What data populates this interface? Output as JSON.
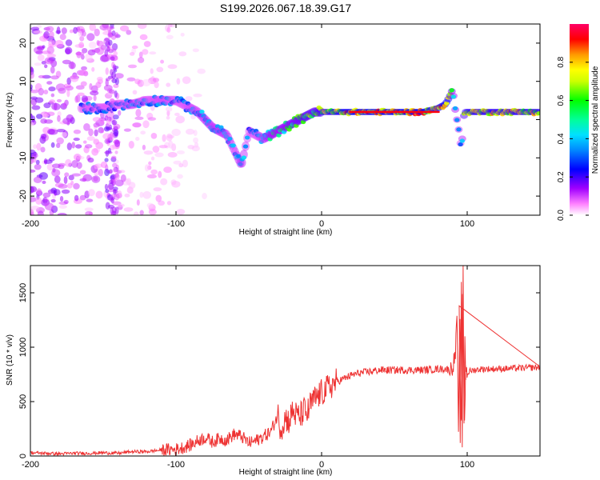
{
  "title": "S199.2026.067.18.39.G17",
  "chart_data": [
    {
      "type": "heatmap",
      "title": "S199.2026.067.18.39.G17",
      "xlabel": "Height of straight line (km)",
      "ylabel": "Frequency (Hz)",
      "xlim": [
        -200,
        150
      ],
      "ylim": [
        -25,
        25
      ],
      "xticks": [
        -200,
        -100,
        0,
        100
      ],
      "yticks": [
        -20,
        -10,
        0,
        10,
        20
      ],
      "colorbar": {
        "label": "Normalized spectral amplitude",
        "range": [
          0,
          1
        ],
        "ticks": [
          0.0,
          0.2,
          0.4,
          0.6,
          0.8
        ],
        "colors": [
          "#ffffff",
          "#ff66ff",
          "#9900ff",
          "#0000ff",
          "#00ccff",
          "#00ff99",
          "#00ff00",
          "#ccff00",
          "#ffff00",
          "#ff9900",
          "#ff0000",
          "#ff0066"
        ]
      },
      "ridge": {
        "x": [
          -160,
          -150,
          -140,
          -130,
          -120,
          -110,
          -100,
          -95,
          -90,
          -85,
          -80,
          -75,
          -70,
          -65,
          -60,
          -55,
          -50,
          -45,
          -40,
          -35,
          -30,
          -25,
          -20,
          -15,
          -10,
          -5,
          0,
          5,
          10,
          20,
          30,
          40,
          50,
          60,
          70,
          80,
          85,
          88,
          90,
          92,
          94,
          96,
          98,
          100,
          110,
          120,
          130,
          150
        ],
        "y": [
          3,
          3,
          4,
          4,
          5,
          5,
          5,
          4,
          3,
          2,
          0,
          -2,
          -3,
          -4,
          -8,
          -12,
          -3,
          -4,
          -5,
          -4,
          -3,
          -2,
          -1,
          0,
          1,
          2,
          2,
          2,
          2,
          2,
          2,
          2,
          2,
          2,
          2,
          3,
          4,
          6,
          8,
          2,
          -2,
          -8,
          2,
          2,
          2,
          2,
          2,
          2
        ],
        "amplitude": [
          0.35,
          0.35,
          0.3,
          0.4,
          0.35,
          0.4,
          0.35,
          0.35,
          0.4,
          0.4,
          0.45,
          0.45,
          0.45,
          0.45,
          0.4,
          0.5,
          0.35,
          0.35,
          0.45,
          0.55,
          0.55,
          0.6,
          0.65,
          0.7,
          0.75,
          0.7,
          0.8,
          0.8,
          0.85,
          0.95,
          0.95,
          0.95,
          0.95,
          0.95,
          0.95,
          0.9,
          0.95,
          0.9,
          0.55,
          0.5,
          0.45,
          0.35,
          0.8,
          0.85,
          0.85,
          0.85,
          0.85,
          0.85
        ]
      }
    },
    {
      "type": "line",
      "xlabel": "Height of straight line (km)",
      "ylabel": "SNR (10 * v/v)",
      "xlim": [
        -200,
        150
      ],
      "ylim": [
        0,
        1750
      ],
      "xticks": [
        -200,
        -100,
        0,
        100
      ],
      "yticks": [
        0,
        500,
        1000,
        1500
      ],
      "color": "#ee3333",
      "series": [
        {
          "name": "SNR",
          "x": [
            -200,
            -190,
            -180,
            -170,
            -160,
            -150,
            -140,
            -130,
            -120,
            -110,
            -100,
            -95,
            -90,
            -85,
            -80,
            -75,
            -70,
            -65,
            -60,
            -55,
            -50,
            -45,
            -40,
            -35,
            -30,
            -28,
            -25,
            -22,
            -20,
            -18,
            -15,
            -12,
            -10,
            -8,
            -5,
            0,
            5,
            10,
            15,
            20,
            25,
            30,
            35,
            40,
            50,
            60,
            70,
            80,
            85,
            88,
            90,
            92,
            93,
            94,
            95,
            96,
            97,
            98,
            99,
            100,
            102,
            105,
            110,
            120,
            130,
            140,
            150
          ],
          "y": [
            30,
            25,
            20,
            25,
            25,
            30,
            25,
            40,
            40,
            55,
            60,
            80,
            100,
            140,
            170,
            130,
            160,
            150,
            200,
            180,
            120,
            140,
            180,
            220,
            380,
            250,
            350,
            320,
            420,
            380,
            360,
            420,
            380,
            460,
            520,
            580,
            630,
            680,
            710,
            740,
            760,
            770,
            780,
            790,
            790,
            790,
            790,
            800,
            800,
            790,
            820,
            950,
            1350,
            150,
            1400,
            80,
            1750,
            200,
            850,
            760,
            780,
            790,
            800,
            800,
            805,
            810,
            815
          ]
        }
      ]
    }
  ]
}
